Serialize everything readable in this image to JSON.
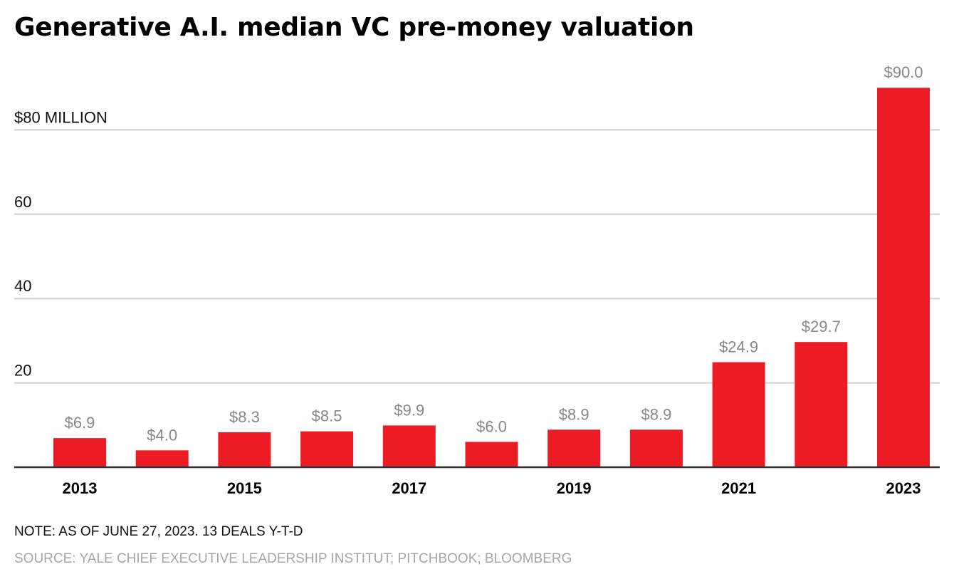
{
  "chart_data": {
    "type": "bar",
    "title": "Generative A.I. median VC pre-money valuation",
    "xlabel": "",
    "ylabel": "$ million",
    "categories": [
      "2013",
      "2014",
      "2015",
      "2016",
      "2017",
      "2018",
      "2019",
      "2020",
      "2021",
      "2022",
      "2023"
    ],
    "values": [
      6.9,
      4.0,
      8.3,
      8.5,
      9.9,
      6.0,
      8.9,
      8.9,
      24.9,
      29.7,
      90.0
    ],
    "data_labels": [
      "$6.9",
      "$4.0",
      "$8.3",
      "$8.5",
      "$9.9",
      "$6.0",
      "$8.9",
      "$8.9",
      "$24.9",
      "$29.7",
      "$90.0"
    ],
    "x_tick_labels": [
      "2013",
      "",
      "2015",
      "",
      "2017",
      "",
      "2019",
      "",
      "2021",
      "",
      "2023"
    ],
    "y_ticks": [
      20,
      40,
      60,
      80
    ],
    "y_tick_labels": [
      "20",
      "40",
      "60",
      "$80 MILLION"
    ],
    "ylim": [
      0,
      90
    ],
    "grid": true,
    "bar_color": "#ed1c24",
    "legend": "none"
  },
  "footer": {
    "note": "NOTE: AS OF JUNE 27, 2023. 13 DEALS Y-T-D",
    "source": "SOURCE: YALE CHIEF EXECUTIVE LEADERSHIP INSTITUT; PITCHBOOK; BLOOMBERG"
  }
}
